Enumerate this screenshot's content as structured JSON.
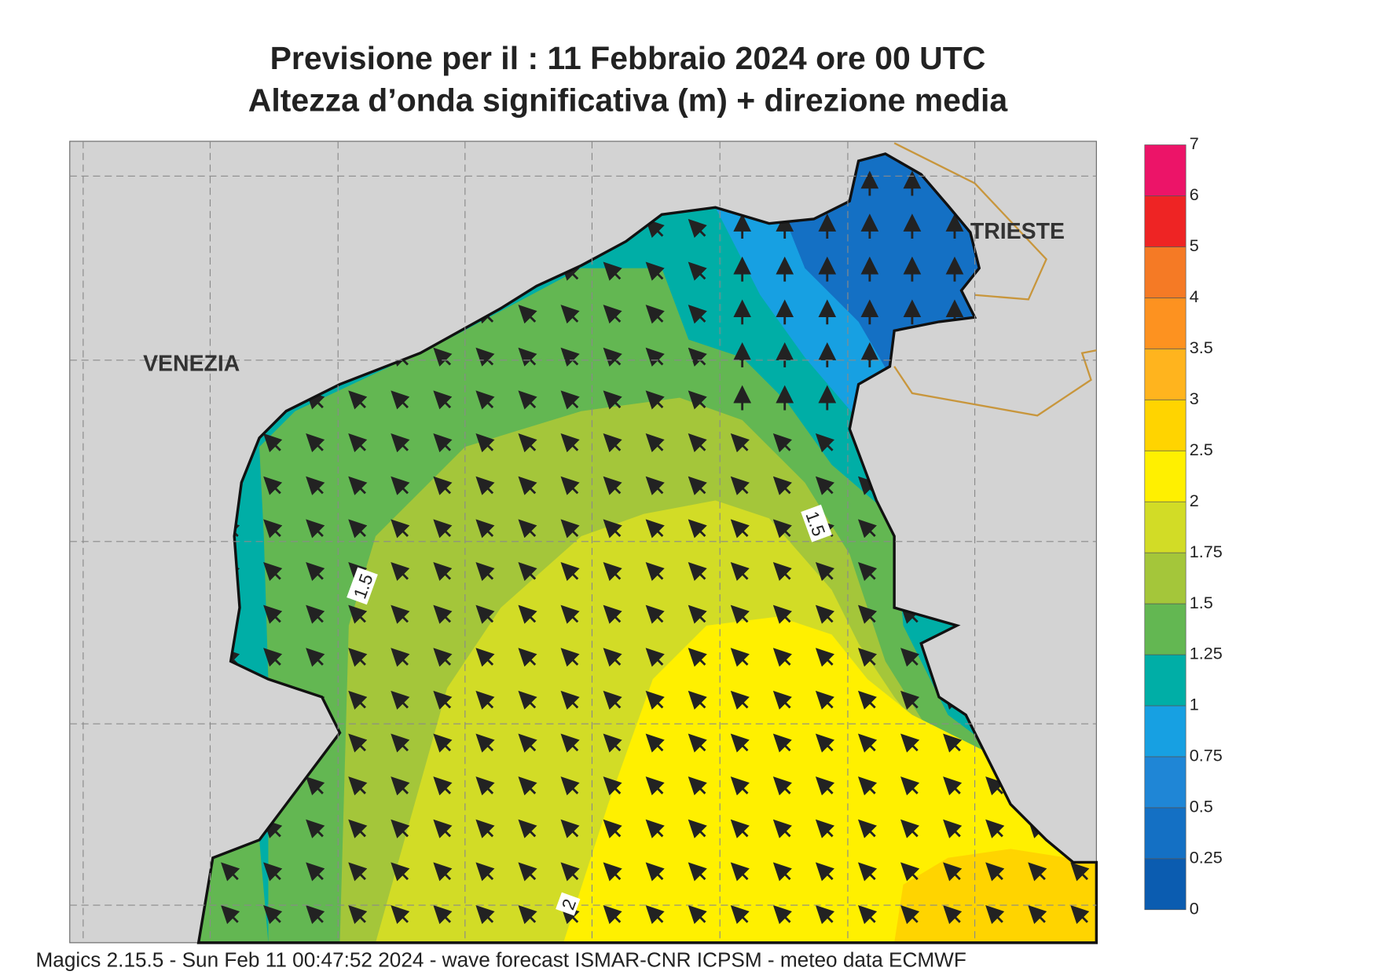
{
  "header": {
    "title_line_1": "Previsione per il  :  11  Febbraio 2024   ore 00 UTC",
    "title_line_2": "Altezza d’onda significativa (m) + direzione media"
  },
  "map": {
    "places": [
      "VENEZIA",
      "TRIESTE"
    ],
    "contour_labels": [
      "1.5",
      "1.5",
      "2"
    ]
  },
  "colorbar": {
    "levels": [
      0,
      0.25,
      0.5,
      0.75,
      1,
      1.25,
      1.5,
      1.75,
      2,
      2.5,
      3,
      3.5,
      4,
      5,
      6,
      7
    ],
    "colors": [
      "#0b5cb0",
      "#1470c4",
      "#1f86d6",
      "#17a0e2",
      "#00aea6",
      "#63b752",
      "#a4c63a",
      "#d2dc26",
      "#fff000",
      "#ffd400",
      "#ffb41e",
      "#fd9220",
      "#f57a25",
      "#ee2424",
      "#ec1468"
    ]
  },
  "footer": "Magics 2.15.5 - Sun Feb 11 00:47:52 2024 - wave forecast  ISMAR-CNR  ICPSM - meteo data    ECMWF"
}
